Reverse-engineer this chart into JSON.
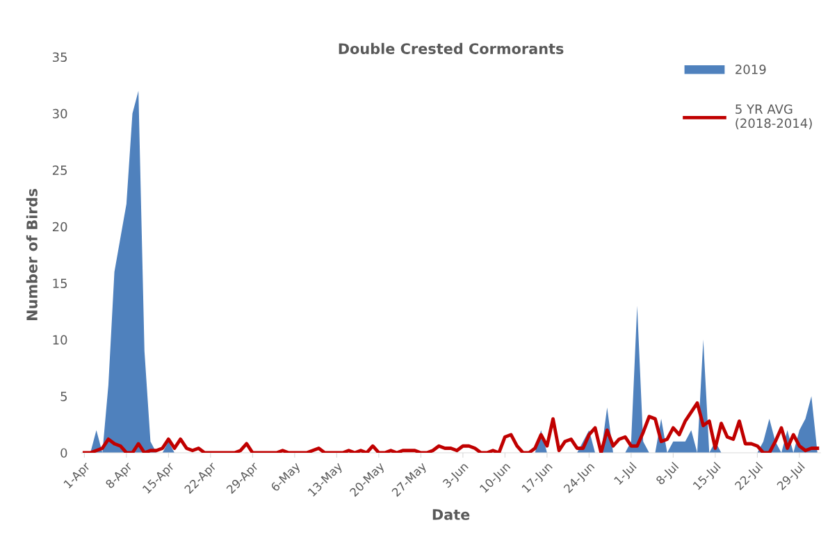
{
  "chart_data": {
    "type": "area",
    "title": "Double Crested Cormorants",
    "xlabel": "Date",
    "ylabel": "Number of Birds",
    "categories": [
      "1-Apr",
      null,
      null,
      null,
      null,
      null,
      null,
      "8-Apr",
      null,
      null,
      null,
      null,
      null,
      null,
      "15-Apr",
      null,
      null,
      null,
      null,
      null,
      null,
      "22-Apr",
      null,
      null,
      null,
      null,
      null,
      null,
      "29-Apr",
      null,
      null,
      null,
      null,
      null,
      null,
      "6-May",
      null,
      null,
      null,
      null,
      null,
      null,
      "13-May",
      null,
      null,
      null,
      null,
      null,
      null,
      "20-May",
      null,
      null,
      null,
      null,
      null,
      null,
      "27-May",
      null,
      null,
      null,
      null,
      null,
      null,
      "3-Jun",
      null,
      null,
      null,
      null,
      null,
      null,
      "10-Jun",
      null,
      null,
      null,
      null,
      null,
      null,
      "17-Jun",
      null,
      null,
      null,
      null,
      null,
      null,
      "24-Jun",
      null,
      null,
      null,
      null,
      null,
      null,
      "1-Jul",
      null,
      null,
      null,
      null,
      null,
      null,
      "8-Jul",
      null,
      null,
      null,
      null,
      null,
      null,
      "15-Jul",
      null,
      null,
      null,
      null,
      null,
      null,
      "22-Jul",
      null,
      null,
      null,
      null,
      null,
      null,
      "29-Jul",
      null,
      null,
      null
    ],
    "series": [
      {
        "name": "2019",
        "color": "#4f81bd",
        "values": [
          0,
          0,
          2,
          0,
          6,
          16,
          19,
          22,
          30,
          32,
          9,
          1,
          0,
          0,
          1,
          0,
          0,
          0,
          0,
          0,
          0,
          0,
          0,
          0,
          0,
          0,
          0,
          0,
          0,
          0,
          0,
          0,
          0,
          0,
          0,
          0,
          0,
          0,
          0,
          0,
          0,
          0,
          0,
          0,
          0,
          0,
          0,
          0,
          0,
          0,
          0,
          0,
          0,
          0,
          0,
          0,
          0,
          0,
          0,
          0,
          0,
          0,
          0,
          0,
          0,
          0,
          0,
          0,
          0,
          0,
          0,
          0,
          0,
          0,
          0,
          0,
          2,
          0,
          0,
          0,
          0,
          0,
          0,
          1,
          2,
          0,
          0,
          4,
          0,
          0,
          0,
          1,
          13,
          1,
          0,
          0,
          3,
          0,
          1,
          1,
          1,
          2,
          0,
          10,
          0,
          1,
          0,
          0,
          0,
          0,
          0,
          0,
          0,
          1,
          3,
          1,
          0,
          2,
          0,
          2,
          3,
          5,
          0
        ]
      },
      {
        "name": "5 YR AVG\n(2018-2014)",
        "type": "line",
        "color": "#c00000",
        "values": [
          0,
          0,
          0.2,
          0.4,
          1.2,
          0.8,
          0.6,
          0,
          0,
          0.8,
          0,
          0.2,
          0.2,
          0.4,
          1.2,
          0.4,
          1.2,
          0.4,
          0.2,
          0.4,
          0,
          0,
          0,
          0,
          0,
          0,
          0.2,
          0.8,
          0,
          0,
          0,
          0,
          0,
          0.2,
          0,
          0,
          0,
          0,
          0.2,
          0.4,
          0,
          0,
          0,
          0,
          0.2,
          0,
          0.2,
          0,
          0.6,
          0,
          0,
          0.2,
          0,
          0.2,
          0.2,
          0.2,
          0,
          0,
          0.2,
          0.6,
          0.4,
          0.4,
          0.2,
          0.6,
          0.6,
          0.4,
          0,
          0,
          0.2,
          0,
          1.4,
          1.6,
          0.6,
          0,
          0,
          0.4,
          1.6,
          0.6,
          3.0,
          0.2,
          1.0,
          1.2,
          0.4,
          0.4,
          1.6,
          2.2,
          0,
          2.0,
          0.6,
          1.2,
          1.4,
          0.6,
          0.6,
          1.8,
          3.2,
          3.0,
          1.0,
          1.2,
          2.2,
          1.6,
          2.8,
          3.6,
          4.4,
          2.4,
          2.8,
          0.4,
          2.6,
          1.4,
          1.2,
          2.8,
          0.8,
          0.8,
          0.6,
          0,
          0,
          1.0,
          2.2,
          0.4,
          1.6,
          0.6,
          0.2,
          0.4,
          0.4
        ]
      }
    ],
    "ylim": [
      0,
      35
    ],
    "yticks": [
      0,
      5,
      10,
      15,
      20,
      25,
      30,
      35
    ],
    "grid": false,
    "legend": "top right"
  }
}
